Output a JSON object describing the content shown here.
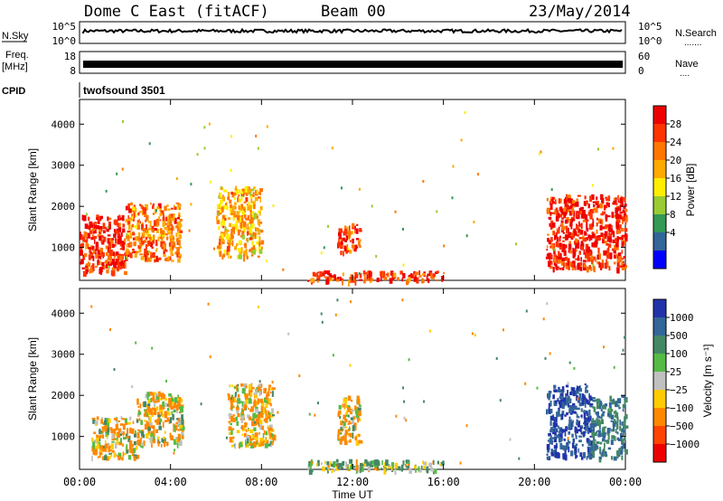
{
  "header": {
    "station": "Dome C East (fitACF)",
    "beam": "Beam 00",
    "date": "23/May/2014"
  },
  "strip_nsky": {
    "left_label": "N.Sky",
    "right_label": "N.Search",
    "right_dots": ".......",
    "left_ticks": [
      "10^5",
      "10^0"
    ],
    "right_ticks": [
      "10^5",
      "10^0"
    ]
  },
  "strip_freq": {
    "left_label_top": "Freq.",
    "left_label_bottom": "[MHz]",
    "right_label": "Nave",
    "right_dots": "....",
    "left_ticks": [
      "18",
      "8"
    ],
    "right_ticks": [
      "60",
      "0"
    ]
  },
  "strip_cpid": {
    "label": "CPID",
    "program": "twofsound 3501"
  },
  "power_panel": {
    "ylabel": "Slant Range [km]",
    "yticks": [
      "4000",
      "3000",
      "2000",
      "1000"
    ],
    "colorbar_label": "Power [dB]",
    "colorbar_ticks": [
      "28",
      "24",
      "20",
      "16",
      "12",
      "8",
      "4"
    ],
    "colorbar_colors": [
      "#ee0000",
      "#ff3300",
      "#ff7700",
      "#ffaa00",
      "#ffee00",
      "#99cc33",
      "#339955",
      "#336699",
      "#0000ff"
    ]
  },
  "velocity_panel": {
    "ylabel": "Slant Range [km]",
    "yticks": [
      "4000",
      "3000",
      "2000",
      "1000"
    ],
    "colorbar_label": "Velocity [m s⁻¹]",
    "colorbar_ticks": [
      "1000",
      "500",
      "100",
      "25",
      "−25",
      "−100",
      "−500",
      "−1000"
    ],
    "colorbar_colors": [
      "#2233aa",
      "#336699",
      "#448866",
      "#55bb44",
      "#c0c0c0",
      "#ffcc00",
      "#ff8800",
      "#ff4400",
      "#ee0000"
    ]
  },
  "xaxis": {
    "label": "Time UT",
    "ticks": [
      "00:00",
      "04:00",
      "08:00",
      "12:00",
      "16:00",
      "20:00",
      "00:00"
    ]
  },
  "chart_data": [
    {
      "type": "heatmap",
      "title": "Power [dB]",
      "xlabel": "Time UT",
      "ylabel": "Slant Range [km]",
      "xlim": [
        0,
        24
      ],
      "ylim": [
        200,
        4600
      ],
      "zlim": [
        0,
        30
      ],
      "regions": [
        {
          "t": [
            0.0,
            2.0
          ],
          "range": [
            400,
            1800
          ],
          "power_db": 28
        },
        {
          "t": [
            2.0,
            4.4
          ],
          "range": [
            700,
            2100
          ],
          "power_db": 22
        },
        {
          "t": [
            6.0,
            8.0
          ],
          "range": [
            800,
            2500
          ],
          "power_db": 18
        },
        {
          "t": [
            11.3,
            12.3
          ],
          "range": [
            900,
            1600
          ],
          "power_db": 26
        },
        {
          "t": [
            10.0,
            16.0
          ],
          "range": [
            200,
            450
          ],
          "power_db": 26
        },
        {
          "t": [
            20.5,
            24.0
          ],
          "range": [
            500,
            2300
          ],
          "power_db": 28
        }
      ]
    },
    {
      "type": "heatmap",
      "title": "Velocity [m s⁻¹]",
      "xlabel": "Time UT",
      "ylabel": "Slant Range [km]",
      "xlim": [
        0,
        24
      ],
      "ylim": [
        200,
        4600
      ],
      "zlim": [
        -1000,
        1000
      ],
      "regions": [
        {
          "t": [
            0.5,
            2.5
          ],
          "range": [
            500,
            1500
          ],
          "velocity": -100
        },
        {
          "t": [
            2.5,
            4.5
          ],
          "range": [
            800,
            2100
          ],
          "velocity": -100
        },
        {
          "t": [
            6.5,
            8.5
          ],
          "range": [
            800,
            2300
          ],
          "velocity": -100
        },
        {
          "t": [
            11.3,
            12.3
          ],
          "range": [
            900,
            2000
          ],
          "velocity": -100
        },
        {
          "t": [
            10.0,
            16.0
          ],
          "range": [
            200,
            450
          ],
          "velocity": 100
        },
        {
          "t": [
            20.5,
            22.5
          ],
          "range": [
            500,
            2300
          ],
          "velocity": 1000
        },
        {
          "t": [
            22.5,
            24.0
          ],
          "range": [
            500,
            2000
          ],
          "velocity": 500
        }
      ]
    }
  ]
}
